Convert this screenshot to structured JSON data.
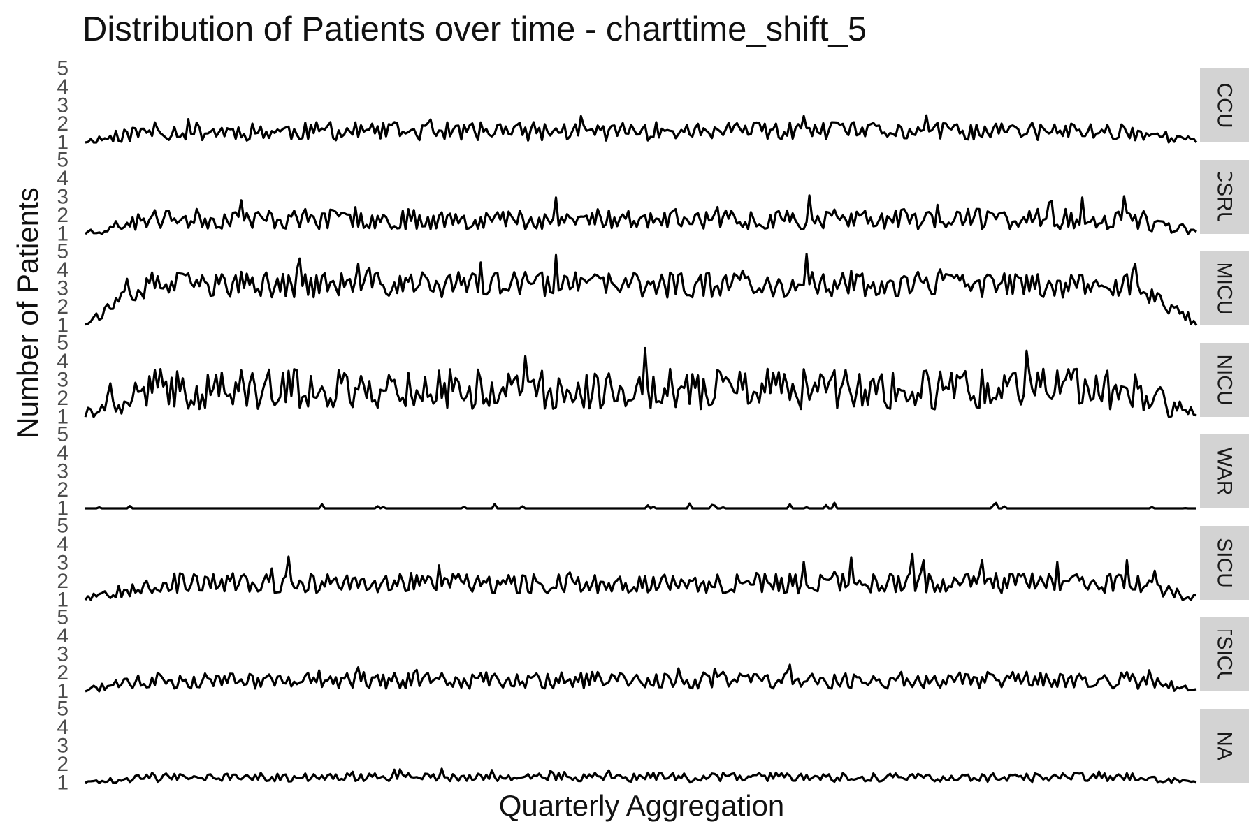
{
  "chart_data": {
    "type": "line",
    "title": "Distribution of Patients over time - charttime_shift_5",
    "xlabel": "Quarterly Aggregation",
    "ylabel": "Number of Patients",
    "ylim": [
      1,
      5
    ],
    "yticks": [
      1,
      2,
      3,
      4,
      5
    ],
    "grid": false,
    "legend": "none",
    "line_color": "#000000",
    "strip_color": "#d3d3d3",
    "n_points": 400,
    "series": [
      {
        "name": "CCU",
        "base": 1.6,
        "amp": 0.5,
        "spike": 0.7,
        "edge": 0.5,
        "seed": 11
      },
      {
        "name": "CSRU",
        "base": 1.8,
        "amp": 0.55,
        "spike": 0.9,
        "edge": 0.7,
        "seed": 23
      },
      {
        "name": "MICU",
        "base": 3.2,
        "amp": 0.7,
        "spike": 1.3,
        "edge": 2.0,
        "seed": 37
      },
      {
        "name": "NICU",
        "base": 2.5,
        "amp": 1.1,
        "spike": 2.0,
        "edge": 1.4,
        "seed": 41
      },
      {
        "name": "NWARD",
        "base": 1.0,
        "amp": 0.0,
        "spike": 0.3,
        "edge": 0.0,
        "seed": 53
      },
      {
        "name": "SICU",
        "base": 1.9,
        "amp": 0.55,
        "spike": 1.1,
        "edge": 0.8,
        "seed": 67
      },
      {
        "name": "TSICU",
        "base": 1.6,
        "amp": 0.45,
        "spike": 1.0,
        "edge": 0.5,
        "seed": 71
      },
      {
        "name": "NA",
        "base": 1.3,
        "amp": 0.25,
        "spike": 0.35,
        "edge": 0.3,
        "seed": 89
      }
    ]
  }
}
